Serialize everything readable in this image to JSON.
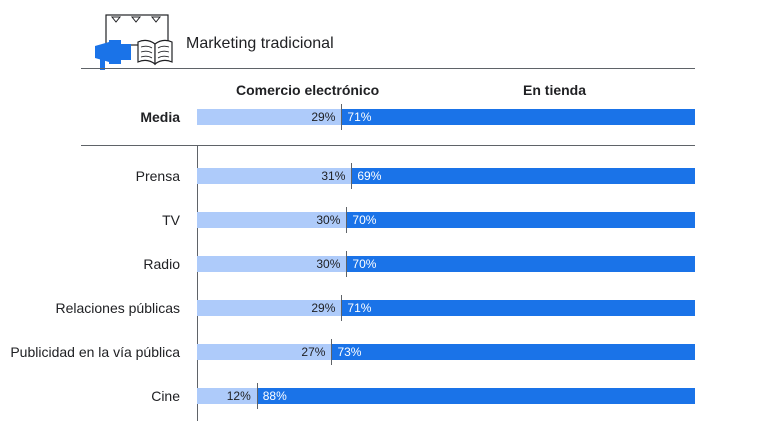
{
  "title": "Marketing tradicional",
  "icon": "megaphone-and-newspaper-icon",
  "colors": {
    "ecommerce": "#aecbfa",
    "store": "#1a73e8"
  },
  "chart_data": {
    "type": "bar",
    "orientation": "horizontal",
    "stacked": true,
    "title": "Marketing tradicional",
    "series_names": [
      "Comercio electrónico",
      "En tienda"
    ],
    "average": {
      "category": "Media",
      "values": [
        29,
        71
      ],
      "labels": [
        "29%",
        "71%"
      ]
    },
    "categories": [
      "Prensa",
      "TV",
      "Radio",
      "Relaciones públicas",
      "Publicidad en la vía pública",
      "Cine"
    ],
    "series": [
      {
        "name": "Comercio electrónico",
        "values": [
          31,
          30,
          30,
          29,
          27,
          12
        ],
        "labels": [
          "31%",
          "30%",
          "30%",
          "29%",
          "27%",
          "12%"
        ]
      },
      {
        "name": "En tienda",
        "values": [
          69,
          70,
          70,
          71,
          73,
          88
        ],
        "labels": [
          "69%",
          "70%",
          "70%",
          "71%",
          "73%",
          "88%"
        ]
      }
    ],
    "xlim": [
      0,
      100
    ],
    "unit": "%"
  }
}
